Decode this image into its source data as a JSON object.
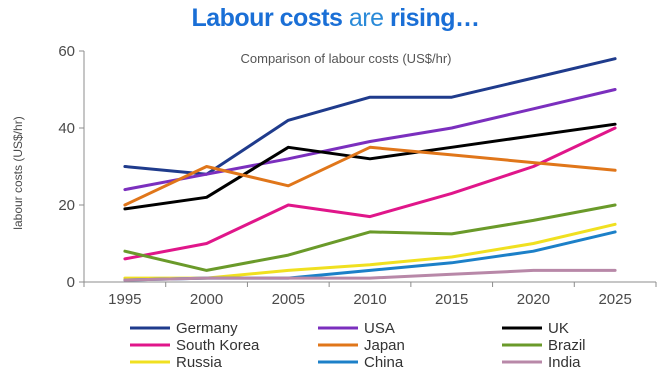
{
  "headline": {
    "part1": "Labour costs",
    "part2": " are ",
    "part3": "rising…"
  },
  "chart_data": {
    "type": "line",
    "title": "Comparison of labour costs (US$/hr)",
    "xlabel": "",
    "ylabel": "labour costs (US$/hr)",
    "x": [
      1995,
      2000,
      2005,
      2010,
      2015,
      2020,
      2025
    ],
    "ylim": [
      0,
      60
    ],
    "yticks": [
      0,
      20,
      40,
      60
    ],
    "grid": false,
    "legend_position": "bottom",
    "series": [
      {
        "name": "Germany",
        "color": "#1f3b8c",
        "values": [
          30,
          28,
          42,
          48,
          48,
          53,
          58
        ]
      },
      {
        "name": "USA",
        "color": "#7b2fbe",
        "values": [
          24,
          28,
          32,
          36.5,
          40,
          45,
          50
        ]
      },
      {
        "name": "UK",
        "color": "#000000",
        "values": [
          19,
          22,
          35,
          32,
          35,
          38,
          41
        ]
      },
      {
        "name": "South Korea",
        "color": "#e0168a",
        "values": [
          6,
          10,
          20,
          17,
          23,
          30,
          40
        ]
      },
      {
        "name": "Japan",
        "color": "#e0761a",
        "values": [
          20,
          30,
          25,
          35,
          33,
          31,
          29
        ]
      },
      {
        "name": "Brazil",
        "color": "#6a9a2a",
        "values": [
          8,
          3,
          7,
          13,
          12.5,
          16,
          20
        ]
      },
      {
        "name": "Russia",
        "color": "#f0e020",
        "values": [
          1,
          1,
          3,
          4.5,
          6.5,
          10,
          15
        ]
      },
      {
        "name": "China",
        "color": "#1c80c8",
        "values": [
          0.5,
          1,
          1,
          3,
          5,
          8,
          13
        ]
      },
      {
        "name": "India",
        "color": "#b888a8",
        "values": [
          0.5,
          1,
          1,
          1,
          2,
          3,
          3
        ]
      }
    ]
  }
}
